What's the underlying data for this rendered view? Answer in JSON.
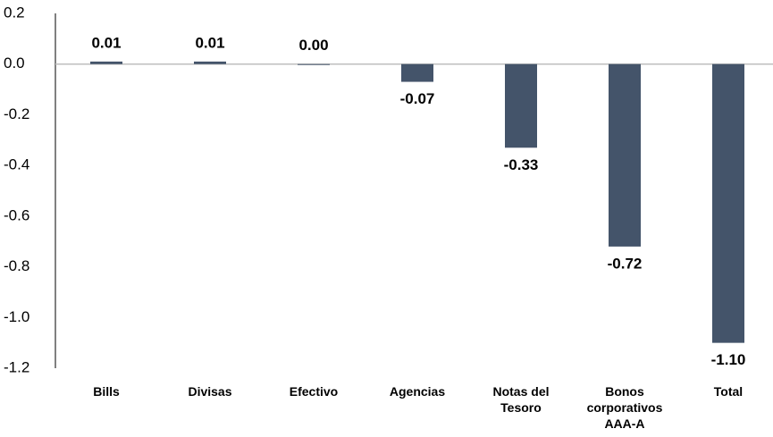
{
  "chart_data": {
    "type": "bar",
    "categories": [
      "Bills",
      "Divisas",
      "Efectivo",
      "Agencias",
      "Notas del Tesoro",
      "Bonos corporativos AAA-A",
      "Total"
    ],
    "values": [
      0.01,
      0.01,
      0,
      -0.07,
      -0.33,
      -0.72,
      -1.1
    ],
    "value_labels": [
      "0.01",
      "0.01",
      "0.00",
      "-0.07",
      "-0.33",
      "-0.72",
      "-1.10"
    ],
    "color": "#44546a",
    "ylim": [
      -1.2,
      0.2
    ],
    "yticks": [
      0.2,
      {
        "value": 0,
        "label": "0.0"
      },
      -0.2,
      -0.4,
      -0.6,
      -0.8,
      {
        "value": -1,
        "label": "-1.0"
      },
      -1.2
    ],
    "grid": false
  }
}
